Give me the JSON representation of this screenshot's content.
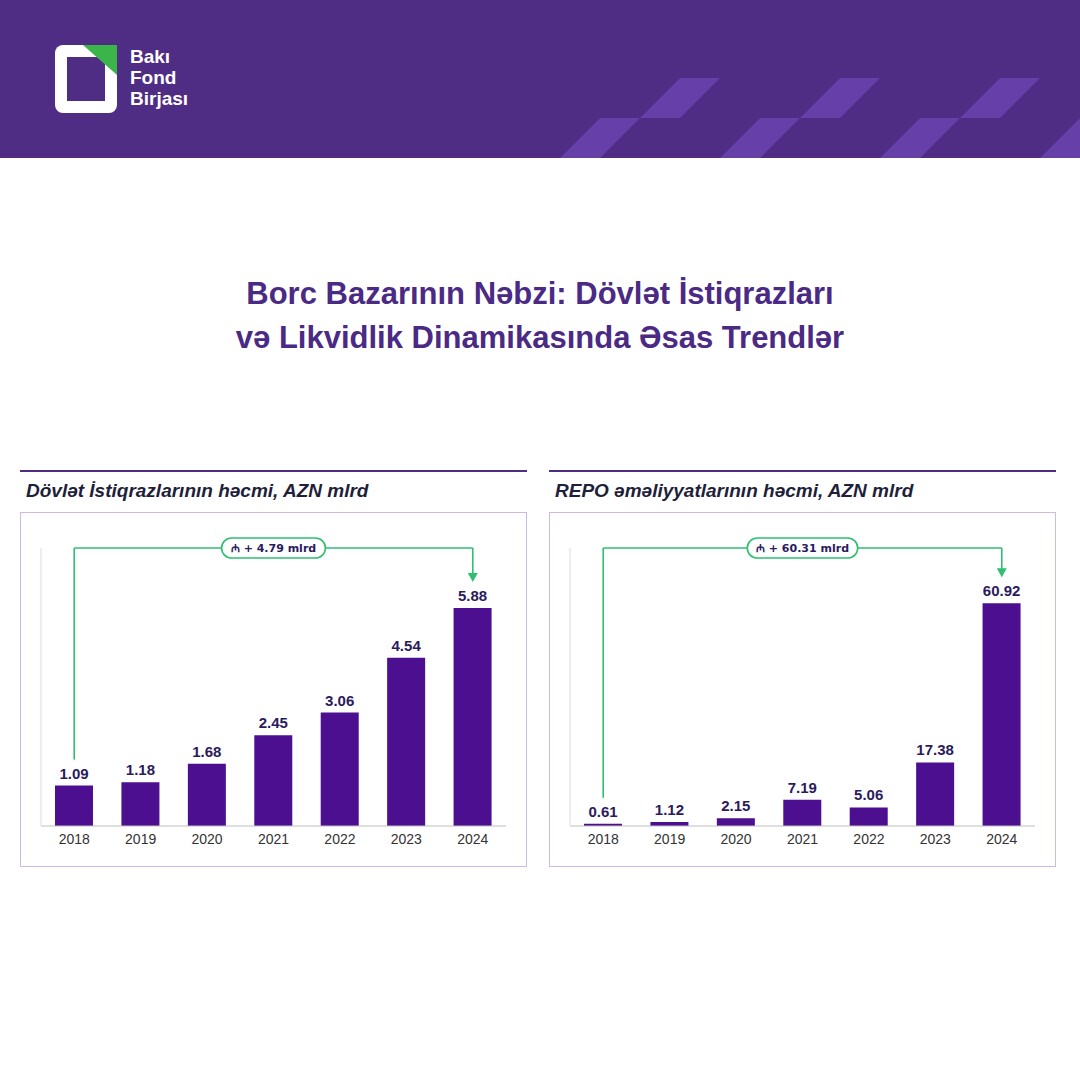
{
  "page": {
    "logo": "Bakı Fond Birjası",
    "title": [
      "Borc Bazarının Nəbzi: Dövlət İstiqrazları",
      "və Likvidlik Dinamikasında Əsas Trendlər"
    ]
  },
  "chart_data": [
    {
      "type": "bar",
      "title": "Dövlət İstiqrazlarının həcmi, AZN mlrd",
      "categories": [
        "2018",
        "2019",
        "2020",
        "2021",
        "2022",
        "2023",
        "2024"
      ],
      "values": [
        1.09,
        1.18,
        1.68,
        2.45,
        3.06,
        4.54,
        5.88
      ],
      "color": "#4b0f8f",
      "ylim": [
        0,
        7.5
      ],
      "tick_labels": "x",
      "data_labels": true,
      "grid": false,
      "annotation": "₼ + 4.79 mlrd"
    },
    {
      "type": "bar",
      "title": "REPO əməliyyatlarının həcmi, AZN mlrd",
      "categories": [
        "2018",
        "2019",
        "2020",
        "2021",
        "2022",
        "2023",
        "2024"
      ],
      "values": [
        0.61,
        1.12,
        2.15,
        7.19,
        5.06,
        17.38,
        60.92
      ],
      "color": "#4b0f8f",
      "ylim": [
        0,
        76
      ],
      "tick_labels": "x",
      "data_labels": true,
      "grid": false,
      "annotation": "₼ + 60.31 mlrd"
    }
  ]
}
